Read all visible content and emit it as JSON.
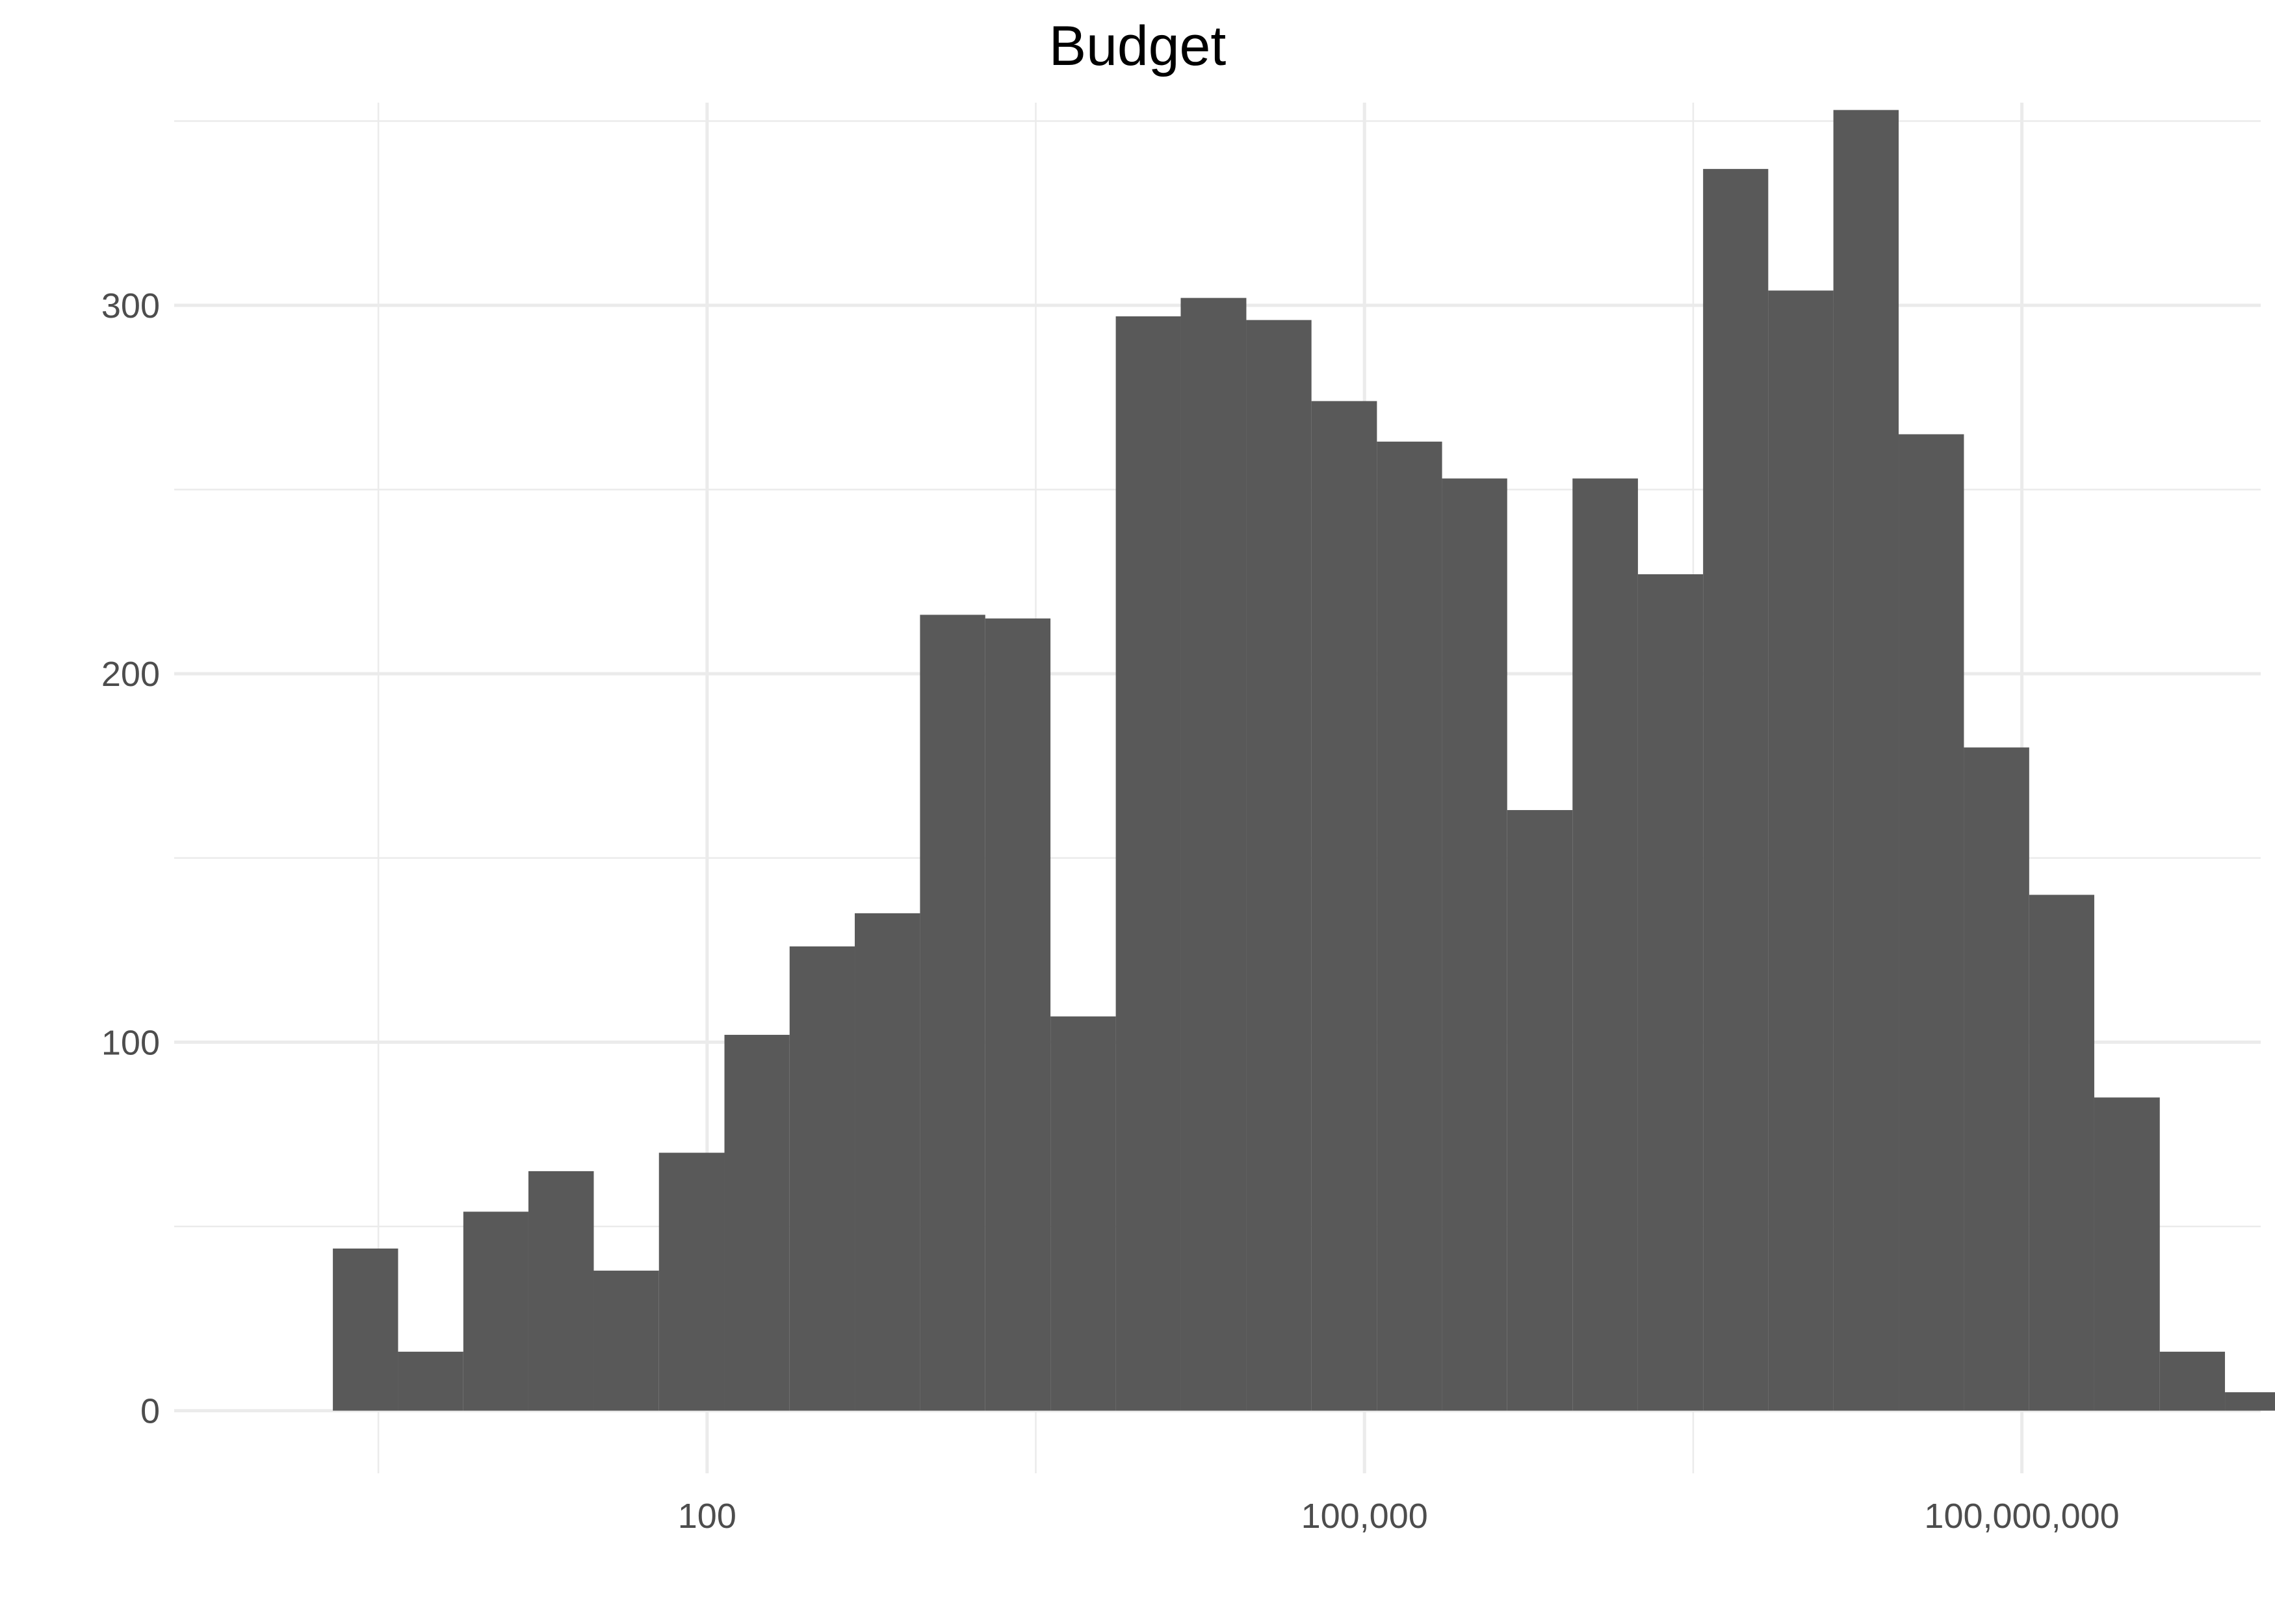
{
  "chart_data": {
    "type": "bar",
    "subtype": "histogram",
    "title": "Budget",
    "xlabel": "",
    "ylabel": "",
    "x_scale": "log10",
    "x_ticks": [
      {
        "value": 100,
        "label": "100"
      },
      {
        "value": 100000,
        "label": "100,000"
      },
      {
        "value": 100000000,
        "label": "100,000,000"
      }
    ],
    "y_ticks": [
      {
        "value": 0,
        "label": "0"
      },
      {
        "value": 100,
        "label": "100"
      },
      {
        "value": 200,
        "label": "200"
      },
      {
        "value": 300,
        "label": "300"
      }
    ],
    "ylim": [
      -17,
      355
    ],
    "xlim": [
      0.37,
      1230000000
    ],
    "grid": true,
    "legend": "none",
    "bar_color": "#595959",
    "bins": [
      {
        "x0": 1.96,
        "x1": 3.89,
        "count": 44
      },
      {
        "x0": 3.89,
        "x1": 7.72,
        "count": 16
      },
      {
        "x0": 7.72,
        "x1": 15.3,
        "count": 54
      },
      {
        "x0": 15.3,
        "x1": 30.4,
        "count": 65
      },
      {
        "x0": 30.4,
        "x1": 60.3,
        "count": 38
      },
      {
        "x0": 60.3,
        "x1": 120,
        "count": 70
      },
      {
        "x0": 120,
        "x1": 238,
        "count": 102
      },
      {
        "x0": 238,
        "x1": 472,
        "count": 126
      },
      {
        "x0": 472,
        "x1": 937,
        "count": 135
      },
      {
        "x0": 937,
        "x1": 1860,
        "count": 216
      },
      {
        "x0": 1860,
        "x1": 3690,
        "count": 215
      },
      {
        "x0": 3690,
        "x1": 7330,
        "count": 107
      },
      {
        "x0": 7330,
        "x1": 14500,
        "count": 297
      },
      {
        "x0": 14500,
        "x1": 28900,
        "count": 302
      },
      {
        "x0": 28900,
        "x1": 57300,
        "count": 296
      },
      {
        "x0": 57300,
        "x1": 114000,
        "count": 274
      },
      {
        "x0": 114000,
        "x1": 226000,
        "count": 263
      },
      {
        "x0": 226000,
        "x1": 448000,
        "count": 253
      },
      {
        "x0": 448000,
        "x1": 890000,
        "count": 163
      },
      {
        "x0": 890000,
        "x1": 1770000,
        "count": 253
      },
      {
        "x0": 1770000,
        "x1": 3510000,
        "count": 227
      },
      {
        "x0": 3510000,
        "x1": 6960000,
        "count": 337
      },
      {
        "x0": 6960000,
        "x1": 13800000,
        "count": 304
      },
      {
        "x0": 13800000,
        "x1": 27400000,
        "count": 353
      },
      {
        "x0": 27400000,
        "x1": 54400000,
        "count": 265
      },
      {
        "x0": 54400000,
        "x1": 108000000,
        "count": 180
      },
      {
        "x0": 108000000,
        "x1": 214000000,
        "count": 140
      },
      {
        "x0": 214000000,
        "x1": 426000000,
        "count": 85
      },
      {
        "x0": 426000000,
        "x1": 845000000,
        "count": 16
      },
      {
        "x0": 845000000,
        "x1": 1680000000,
        "count": 5
      }
    ]
  }
}
